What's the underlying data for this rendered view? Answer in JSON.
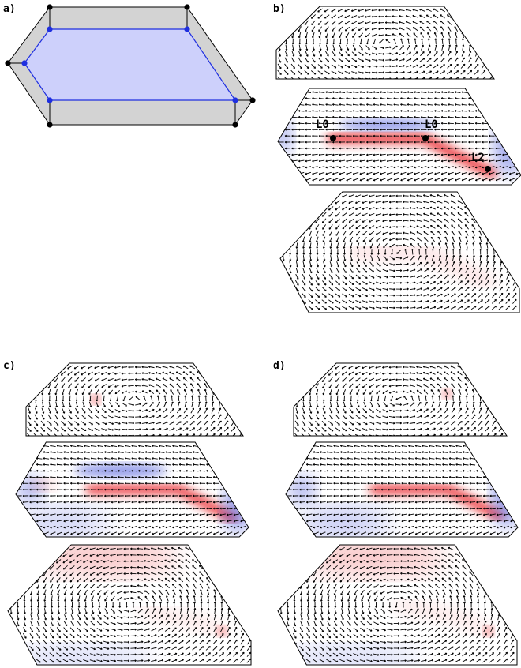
{
  "panels": {
    "a": {
      "label": "a)"
    },
    "b": {
      "label": "b)"
    },
    "c": {
      "label": "c)"
    },
    "d": {
      "label": "d)"
    }
  },
  "site_labels": {
    "left": "L0",
    "right": "L0",
    "corner": "L2"
  },
  "colors": {
    "outer_fill": "#d3d3d3",
    "inner_fill": "#cdd0fb",
    "inner_edge": "#1f2fe0",
    "outline": "#000000",
    "red": "#e8262a",
    "blue": "#3846d8",
    "arrow": "#000000"
  }
}
